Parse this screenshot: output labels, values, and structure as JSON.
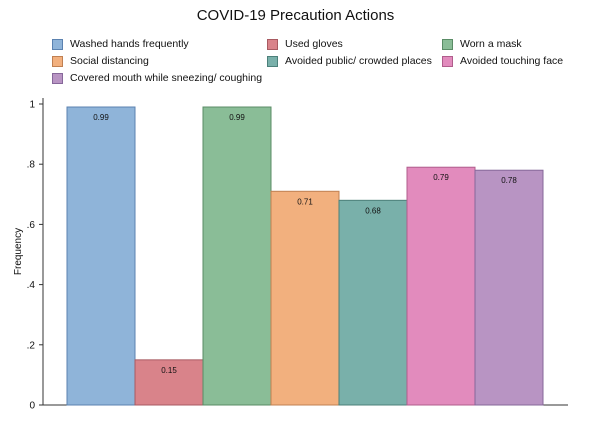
{
  "chart_data": {
    "type": "bar",
    "title": "COVID-19 Precaution Actions",
    "xlabel": "",
    "ylabel": "Frequency",
    "ylim": [
      0,
      1
    ],
    "yticks": [
      {
        "value": 0,
        "label": "0"
      },
      {
        "value": 0.2,
        "label": ".2"
      },
      {
        "value": 0.4,
        "label": ".4"
      },
      {
        "value": 0.6,
        "label": ".6"
      },
      {
        "value": 0.8,
        "label": ".8"
      },
      {
        "value": 1,
        "label": "1"
      }
    ],
    "legend_position": "top",
    "grid": false,
    "series": [
      {
        "name": "Washed hands frequently",
        "value": 0.99,
        "label": "0.99",
        "color": "#8fb4d9",
        "edge": "#5b82b0"
      },
      {
        "name": "Used gloves",
        "value": 0.15,
        "label": "0.15",
        "color": "#d9838a",
        "edge": "#a85a61"
      },
      {
        "name": "Worn a mask",
        "value": 0.99,
        "label": "0.99",
        "color": "#8abd97",
        "edge": "#5a8c66"
      },
      {
        "name": "Social distancing",
        "value": 0.71,
        "label": "0.71",
        "color": "#f2b07e",
        "edge": "#c08052"
      },
      {
        "name": "Avoided public/ crowded places",
        "value": 0.68,
        "label": "0.68",
        "color": "#79b0aa",
        "edge": "#4c807a"
      },
      {
        "name": "Avoided touching face",
        "value": 0.79,
        "label": "0.79",
        "color": "#e28bbd",
        "edge": "#b05d8c"
      },
      {
        "name": "Covered mouth while sneezing/ coughing",
        "value": 0.78,
        "label": "0.78",
        "color": "#b894c3",
        "edge": "#86679a"
      }
    ]
  }
}
